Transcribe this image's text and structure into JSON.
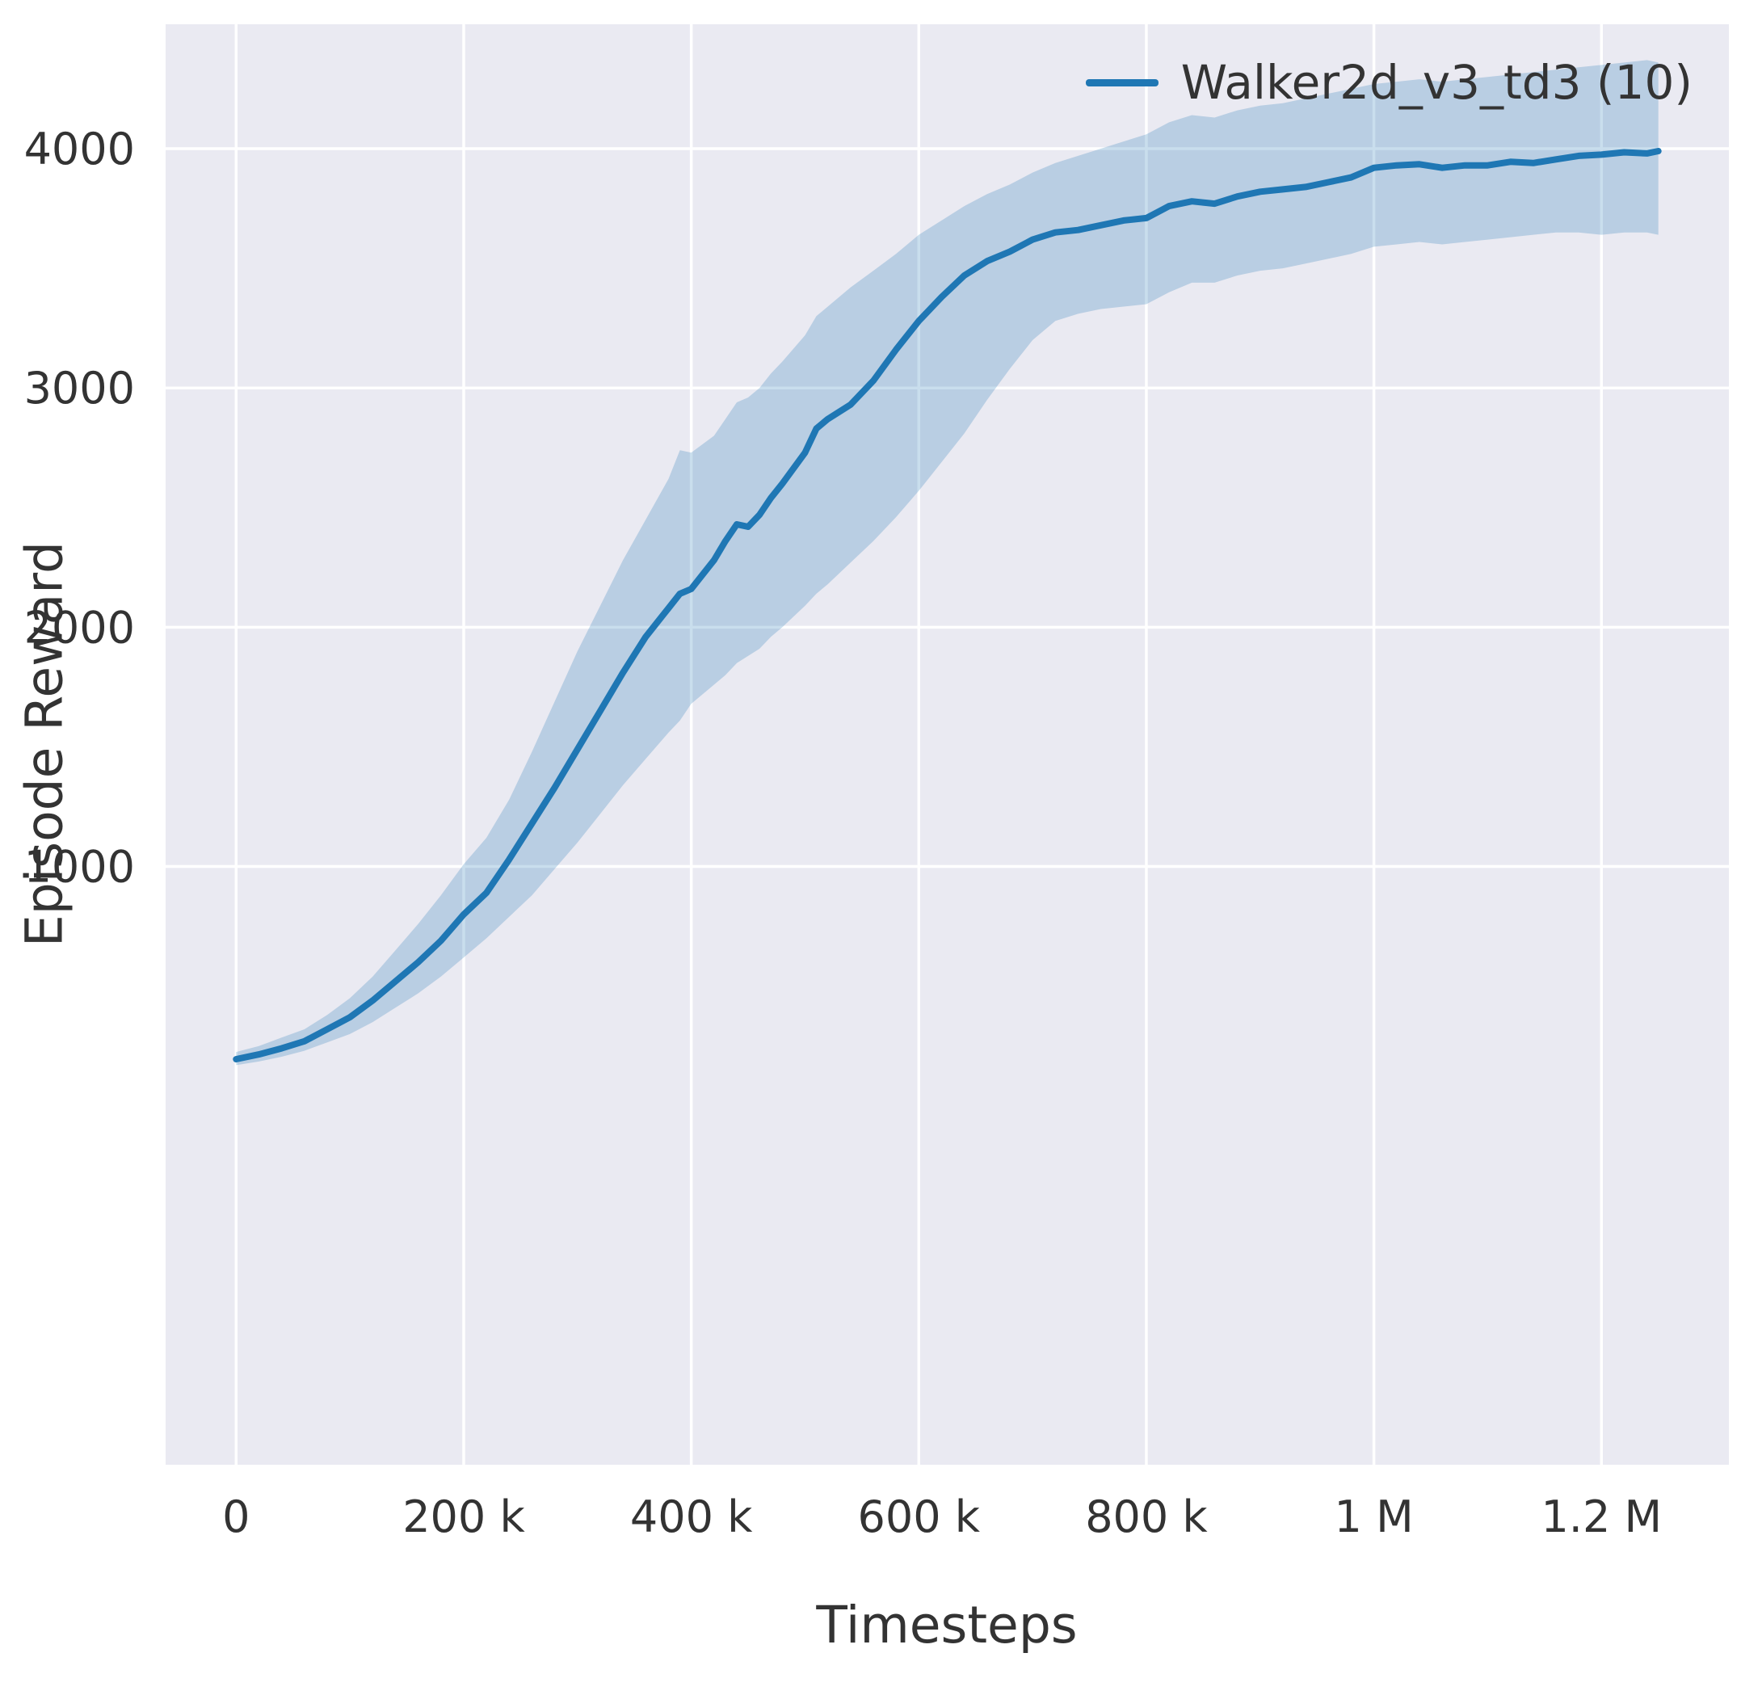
{
  "figure": {
    "background": "#ffffff",
    "plot_background": "#eaeaf2",
    "grid_color": "#ffffff",
    "text_color": "#333333"
  },
  "chart_data": {
    "type": "line",
    "title": "",
    "xlabel": "Timesteps",
    "ylabel": "Episode Reward",
    "grid": true,
    "legend_position": "upper right",
    "legend": [
      {
        "label": "Walker2d_v3_td3 (10)",
        "color": "#1f77b4"
      }
    ],
    "xlim": [
      -62000,
      1312000
    ],
    "ylim": [
      -1500,
      4520
    ],
    "xticks": [
      {
        "value": 0,
        "label": "0"
      },
      {
        "value": 200000,
        "label": "200 k"
      },
      {
        "value": 400000,
        "label": "400 k"
      },
      {
        "value": 600000,
        "label": "600 k"
      },
      {
        "value": 800000,
        "label": "800 k"
      },
      {
        "value": 1000000,
        "label": "1 M"
      },
      {
        "value": 1200000,
        "label": "1.2 M"
      }
    ],
    "yticks": [
      {
        "value": 1000,
        "label": "1000"
      },
      {
        "value": 2000,
        "label": "2000"
      },
      {
        "value": 3000,
        "label": "3000"
      },
      {
        "value": 4000,
        "label": "4000"
      }
    ],
    "series": [
      {
        "name": "Walker2d_v3_td3 (10)",
        "color": "#1f77b4",
        "line_width": 8,
        "band_opacity": 0.24,
        "x": [
          0,
          20000,
          40000,
          60000,
          80000,
          100000,
          120000,
          140000,
          160000,
          180000,
          200000,
          220000,
          240000,
          260000,
          280000,
          300000,
          320000,
          340000,
          360000,
          380000,
          390000,
          400000,
          420000,
          430000,
          440000,
          450000,
          460000,
          470000,
          480000,
          500000,
          510000,
          520000,
          540000,
          560000,
          580000,
          600000,
          620000,
          640000,
          660000,
          680000,
          700000,
          720000,
          740000,
          760000,
          780000,
          800000,
          820000,
          840000,
          860000,
          880000,
          900000,
          920000,
          940000,
          960000,
          980000,
          1000000,
          1020000,
          1040000,
          1060000,
          1080000,
          1100000,
          1120000,
          1140000,
          1160000,
          1180000,
          1200000,
          1220000,
          1240000,
          1250000
        ],
        "mean": [
          195,
          215,
          240,
          270,
          320,
          370,
          440,
          520,
          600,
          690,
          800,
          890,
          1030,
          1180,
          1330,
          1490,
          1650,
          1810,
          1960,
          2080,
          2140,
          2160,
          2280,
          2360,
          2430,
          2420,
          2470,
          2540,
          2600,
          2730,
          2830,
          2870,
          2930,
          3030,
          3160,
          3280,
          3380,
          3470,
          3530,
          3570,
          3620,
          3650,
          3660,
          3680,
          3700,
          3710,
          3760,
          3780,
          3770,
          3800,
          3820,
          3830,
          3840,
          3860,
          3880,
          3920,
          3930,
          3935,
          3920,
          3930,
          3930,
          3945,
          3940,
          3955,
          3970,
          3975,
          3985,
          3980,
          3990
        ],
        "lower": [
          170,
          185,
          205,
          230,
          265,
          300,
          350,
          410,
          470,
          540,
          620,
          700,
          790,
          880,
          990,
          1100,
          1220,
          1340,
          1450,
          1560,
          1610,
          1680,
          1760,
          1800,
          1850,
          1880,
          1910,
          1960,
          2000,
          2090,
          2140,
          2180,
          2270,
          2360,
          2460,
          2570,
          2690,
          2810,
          2950,
          3080,
          3200,
          3280,
          3310,
          3330,
          3340,
          3350,
          3400,
          3440,
          3440,
          3470,
          3490,
          3500,
          3520,
          3540,
          3560,
          3590,
          3600,
          3610,
          3600,
          3610,
          3620,
          3630,
          3640,
          3650,
          3650,
          3640,
          3650,
          3650,
          3640
        ],
        "upper": [
          225,
          250,
          285,
          320,
          380,
          450,
          540,
          650,
          760,
          880,
          1010,
          1120,
          1280,
          1480,
          1690,
          1900,
          2090,
          2280,
          2450,
          2620,
          2740,
          2730,
          2800,
          2870,
          2940,
          2960,
          3000,
          3060,
          3110,
          3220,
          3300,
          3340,
          3420,
          3490,
          3560,
          3640,
          3700,
          3760,
          3810,
          3850,
          3900,
          3940,
          3970,
          4000,
          4030,
          4060,
          4110,
          4140,
          4130,
          4160,
          4180,
          4190,
          4210,
          4230,
          4250,
          4270,
          4280,
          4290,
          4280,
          4290,
          4300,
          4310,
          4320,
          4330,
          4340,
          4350,
          4360,
          4370,
          4360
        ]
      }
    ]
  }
}
